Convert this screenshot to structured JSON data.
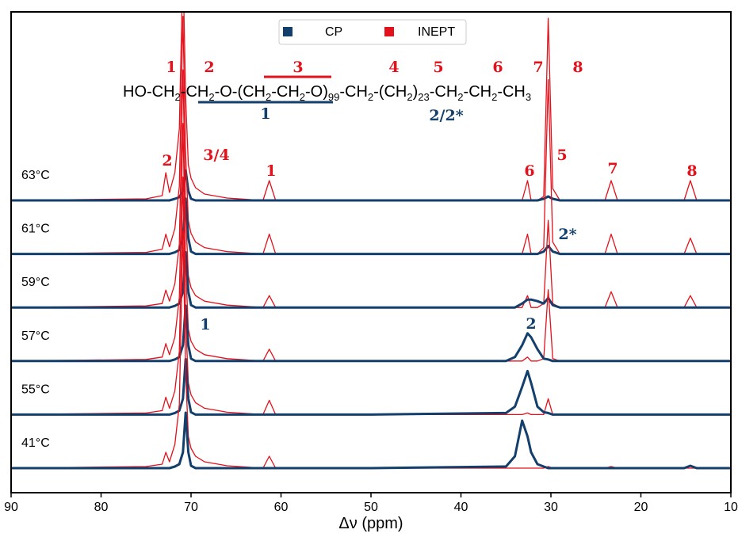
{
  "chart_data": {
    "type": "spectra",
    "xlabel": "Δν (ppm)",
    "xlim": [
      90,
      10
    ],
    "xticks": [
      90,
      80,
      70,
      60,
      50,
      40,
      30,
      20,
      10
    ],
    "legend": [
      {
        "name": "CP",
        "color": "#123f6b"
      },
      {
        "name": "INEPT",
        "color": "#e3111b"
      }
    ],
    "x": [
      90,
      75,
      73.2,
      72.8,
      72.4,
      71.8,
      71.3,
      70.9,
      70.6,
      70.3,
      70,
      69.5,
      68.5,
      66,
      62,
      61.3,
      60.6,
      50,
      35,
      34,
      33.2,
      32.6,
      32.2,
      31.5,
      30.8,
      30.3,
      29.8,
      29,
      24,
      23.3,
      22.6,
      15.2,
      14.5,
      13.8,
      10
    ],
    "traces": [
      {
        "label": "63°C",
        "cp": [
          0,
          0,
          0,
          0,
          0,
          2,
          4,
          12,
          38,
          12,
          2,
          0,
          0,
          0,
          0,
          0,
          0,
          0,
          0,
          0,
          0,
          0,
          0,
          0,
          2,
          5,
          2,
          0,
          0,
          0,
          0,
          0,
          0,
          0,
          0
        ],
        "inept": [
          0,
          2,
          6,
          35,
          10,
          35,
          90,
          300,
          130,
          45,
          28,
          16,
          8,
          3,
          0,
          25,
          0,
          0,
          0,
          0,
          0,
          25,
          0,
          0,
          5,
          230,
          15,
          0,
          0,
          25,
          0,
          0,
          25,
          0,
          0
        ]
      },
      {
        "label": "61°C",
        "cp": [
          0,
          0,
          0,
          0,
          0,
          2,
          5,
          20,
          70,
          20,
          3,
          0,
          0,
          0,
          0,
          0,
          0,
          0,
          0,
          0,
          0,
          0,
          0,
          0,
          3,
          10,
          3,
          0,
          0,
          0,
          0,
          0,
          0,
          0,
          0
        ],
        "inept": [
          0,
          2,
          6,
          25,
          9,
          32,
          85,
          300,
          125,
          42,
          26,
          15,
          8,
          3,
          0,
          25,
          0,
          0,
          0,
          0,
          0,
          25,
          0,
          0,
          8,
          220,
          15,
          0,
          0,
          25,
          0,
          0,
          20,
          0,
          0
        ]
      },
      {
        "label": "59°C",
        "cp": [
          0,
          0,
          0,
          0,
          0,
          2,
          5,
          20,
          70,
          20,
          3,
          0,
          0,
          0,
          0,
          0,
          0,
          0,
          0,
          0,
          5,
          10,
          10,
          8,
          5,
          12,
          3,
          0,
          0,
          0,
          0,
          0,
          0,
          0,
          0
        ],
        "inept": [
          0,
          2,
          5,
          22,
          8,
          30,
          80,
          300,
          120,
          40,
          25,
          15,
          8,
          3,
          0,
          15,
          0,
          0,
          0,
          0,
          0,
          15,
          0,
          0,
          5,
          110,
          5,
          0,
          0,
          20,
          0,
          0,
          15,
          0,
          0
        ]
      },
      {
        "label": "57°C",
        "cp": [
          0,
          0,
          0,
          0,
          0,
          2,
          5,
          20,
          70,
          20,
          3,
          0,
          0,
          0,
          0,
          0,
          0,
          0,
          0,
          5,
          20,
          35,
          30,
          15,
          3,
          2,
          0,
          0,
          0,
          0,
          0,
          0,
          0,
          0,
          0
        ],
        "inept": [
          0,
          2,
          5,
          22,
          8,
          30,
          80,
          300,
          120,
          40,
          25,
          15,
          8,
          3,
          0,
          15,
          0,
          0,
          0,
          0,
          0,
          5,
          0,
          0,
          3,
          90,
          3,
          0,
          0,
          0,
          0,
          0,
          0,
          0,
          0
        ]
      },
      {
        "label": "55°C",
        "cp": [
          0,
          0,
          0,
          0,
          0,
          2,
          5,
          20,
          70,
          20,
          3,
          0,
          0,
          0,
          0,
          0,
          0,
          0,
          2,
          10,
          35,
          55,
          40,
          10,
          3,
          2,
          0,
          0,
          0,
          0,
          0,
          0,
          0,
          0,
          0
        ],
        "inept": [
          0,
          2,
          5,
          22,
          8,
          30,
          80,
          300,
          120,
          40,
          25,
          15,
          8,
          3,
          0,
          18,
          0,
          0,
          0,
          0,
          0,
          2,
          0,
          0,
          0,
          20,
          0,
          0,
          0,
          0,
          0,
          0,
          0,
          0,
          0
        ]
      },
      {
        "label": "41°C",
        "cp": [
          0,
          0,
          0,
          0,
          0,
          2,
          5,
          20,
          70,
          20,
          3,
          0,
          0,
          0,
          0,
          0,
          0,
          0,
          2,
          15,
          60,
          40,
          20,
          5,
          2,
          0,
          0,
          0,
          0,
          0,
          0,
          0,
          3,
          0,
          0
        ],
        "inept": [
          0,
          2,
          5,
          20,
          8,
          30,
          80,
          300,
          120,
          40,
          25,
          15,
          8,
          3,
          0,
          15,
          0,
          0,
          0,
          0,
          0,
          0,
          0,
          0,
          0,
          2,
          0,
          0,
          0,
          2,
          0,
          0,
          0,
          0,
          0
        ]
      }
    ],
    "formula": [
      {
        "text": "HO-CH"
      },
      {
        "text": "2",
        "sub": true
      },
      {
        "text": "-CH"
      },
      {
        "text": "2",
        "sub": true
      },
      {
        "text": "-O-(CH"
      },
      {
        "text": "2",
        "sub": true
      },
      {
        "text": "-CH"
      },
      {
        "text": "2",
        "sub": true
      },
      {
        "text": "-O)"
      },
      {
        "text": "99",
        "sub": true
      },
      {
        "text": "-CH"
      },
      {
        "text": "2",
        "sub": true
      },
      {
        "text": "-(CH"
      },
      {
        "text": "2",
        "sub": true
      },
      {
        "text": ")"
      },
      {
        "text": "23",
        "sub": true
      },
      {
        "text": "-CH"
      },
      {
        "text": "2",
        "sub": true
      },
      {
        "text": "-CH"
      },
      {
        "text": "2",
        "sub": true
      },
      {
        "text": "-CH"
      },
      {
        "text": "3",
        "sub": true
      }
    ],
    "inept_carbon_labels": [
      "1",
      "2",
      "3",
      "4",
      "5",
      "6",
      "7",
      "8"
    ],
    "cp_carbon_labels": [
      "1",
      "2/2*"
    ],
    "inept_peak_labels": [
      "2",
      "3/4",
      "1",
      "6",
      "5",
      "7",
      "8"
    ],
    "cp_peak_labels": [
      "2*",
      "1",
      "2"
    ]
  }
}
